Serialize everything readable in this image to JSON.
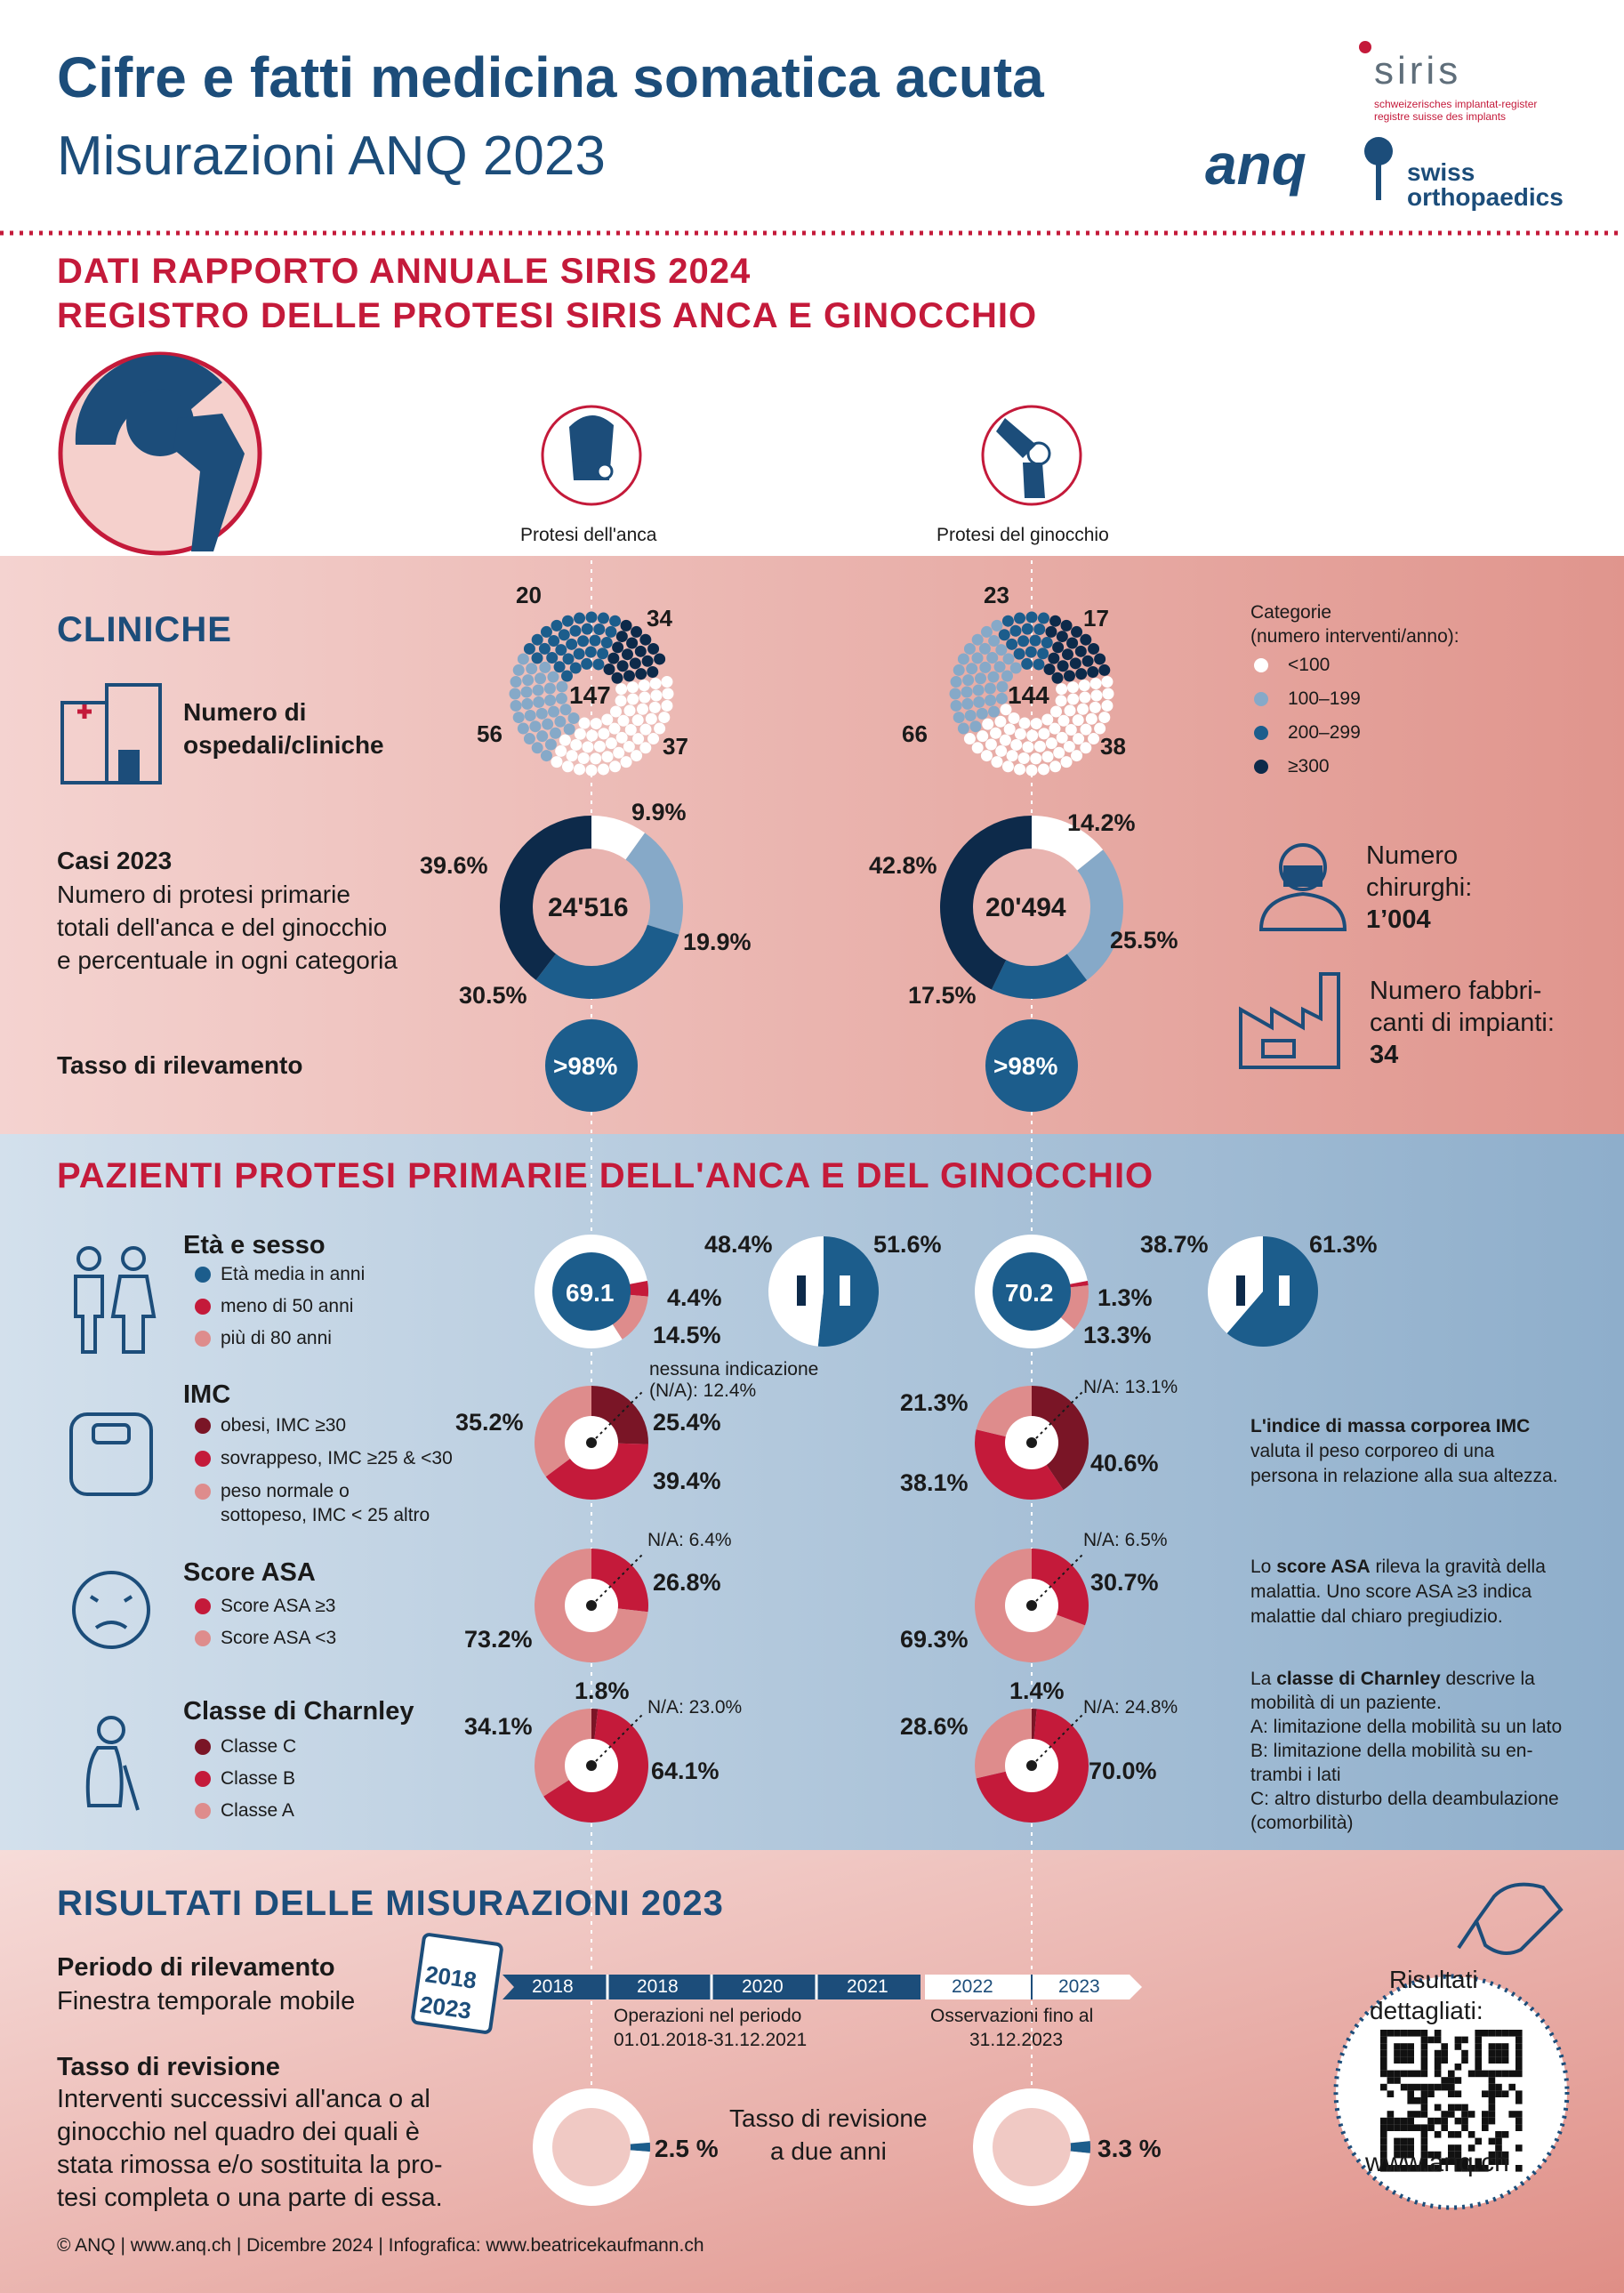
{
  "header": {
    "title": "Cifre e fatti medicina somatica acuta",
    "subtitle": "Misurazioni ANQ 2023",
    "siris_name": "siris",
    "siris_line1": "schweizerisches implantat-register",
    "siris_line2": "registre suisse des implants",
    "anq_logo": "anq",
    "so_line1": "swiss",
    "so_line2": "orthopaedics"
  },
  "section_title": {
    "line1": "DATI RAPPORTO ANNUALE SIRIS 2024",
    "line2": "REGISTRO DELLE PROTESI SIRIS ANCA E GINOCCHIO"
  },
  "columns": {
    "hip": "Protesi dell'anca",
    "knee": "Protesi del ginocchio"
  },
  "cliniche": {
    "title": "CLINICHE",
    "hospitals_label_1": "Numero di",
    "hospitals_label_2": "ospedali/cliniche",
    "hip": {
      "total": "147",
      "lt100": "56",
      "c100_199": "37",
      "c200_299": "34",
      "ge300": "20"
    },
    "knee": {
      "total": "144",
      "lt100": "66",
      "c100_199": "38",
      "c200_299": "17",
      "ge300": "23"
    },
    "legend": {
      "title1": "Categorie",
      "title2": "(numero interventi/anno):",
      "items": [
        "<100",
        "100–199",
        "200–299",
        "≥300"
      ]
    },
    "cases_title": "Casi 2023",
    "cases_desc": [
      "Numero di protesi primarie",
      "totali dell'anca e del ginocchio",
      "e percentuale in ogni categoria"
    ],
    "hip_cases": {
      "total": "24'516",
      "p_lt100": "9.9%",
      "p_100": "19.9%",
      "p_200": "30.5%",
      "p_300": "39.6%"
    },
    "knee_cases": {
      "total": "20'494",
      "p_lt100": "14.2%",
      "p_100": "25.5%",
      "p_200": "17.5%",
      "p_300": "42.8%"
    },
    "rate_label": "Tasso di rilevamento",
    "hip_rate": ">98%",
    "knee_rate": ">98%",
    "surgeons_1": "Numero",
    "surgeons_2": "chirurghi:",
    "surgeons_value": "1’004",
    "manufacturers_1": "Numero fabbri-",
    "manufacturers_2": "canti di impianti:",
    "manufacturers_value": "34"
  },
  "pazienti": {
    "title": "PAZIENTI PROTESI PRIMARIE DELL'ANCA E DEL GINOCCHIO",
    "age": {
      "title": "Età e sesso",
      "legend": [
        "Età media in anni",
        "meno di 50 anni",
        "più di 80 anni"
      ],
      "hip": {
        "mean": "69.1",
        "under50": "4.4%",
        "over80": "14.5%",
        "male": "48.4%",
        "female": "51.6%"
      },
      "knee": {
        "mean": "70.2",
        "under50": "1.3%",
        "over80": "13.3%",
        "male": "38.7%",
        "female": "61.3%"
      }
    },
    "imc": {
      "title": "IMC",
      "legend": [
        "obesi, IMC ≥30",
        "sovrappeso, IMC ≥25 & <30",
        "peso normale o",
        "sottopeso, IMC < 25 altro"
      ],
      "hip": {
        "na_1": "nessuna indicazione",
        "na_2": "(N/A): 12.4%",
        "obese": "25.4%",
        "over": "39.4%",
        "normal": "35.2%"
      },
      "knee": {
        "na": "N/A: 13.1%",
        "obese": "40.6%",
        "over": "38.1%",
        "normal": "21.3%"
      },
      "note_bold": "L'indice di massa corporea IMC",
      "note_lines": [
        "valuta il peso corporeo di una",
        "persona in relazione alla sua altezza."
      ]
    },
    "asa": {
      "title": "Score ASA",
      "legend": [
        "Score ASA ≥3",
        "Score ASA <3"
      ],
      "hip": {
        "na": "N/A: 6.4%",
        "ge3": "26.8%",
        "lt3": "73.2%"
      },
      "knee": {
        "na": "N/A: 6.5%",
        "ge3": "30.7%",
        "lt3": "69.3%"
      },
      "note_pre": "Lo ",
      "note_bold": "score ASA",
      "note_post": " rileva la gravità della",
      "note_lines": [
        "malattia. Uno score ASA ≥3 indica",
        "malattie dal chiaro pregiudizio."
      ]
    },
    "charnley": {
      "title": "Classe di Charnley",
      "legend": [
        "Classe C",
        "Classe B",
        "Classe A"
      ],
      "hip": {
        "na": "N/A: 23.0%",
        "c": "1.8%",
        "b": "64.1%",
        "a": "34.1%"
      },
      "knee": {
        "na": "N/A: 24.8%",
        "c": "1.4%",
        "b": "70.0%",
        "a": "28.6%"
      },
      "note_pre": "La ",
      "note_bold": "classe di Charnley",
      "note_post": " descrive la",
      "note_lines": [
        "mobilità di un paziente.",
        "A: limitazione della mobilità su un lato",
        "B: limitazione della mobilità su en-",
        "trambi i lati",
        "C: altro disturbo della deambulazione",
        "(comorbilità)"
      ]
    }
  },
  "risultati": {
    "title": "RISULTATI DELLE MISURAZIONI 2023",
    "period_title": "Periodo di rilevamento",
    "period_desc": "Finestra temporale mobile",
    "calendar_1": "2018",
    "calendar_2": "2023",
    "timeline": [
      "2018",
      "2018",
      "2020",
      "2021",
      "2022",
      "2023"
    ],
    "ops_1": "Operazioni nel periodo",
    "ops_2": "01.01.2018-31.12.2021",
    "obs_1": "Osservazioni fino al",
    "obs_2": "31.12.2023",
    "revision_title": "Tasso di revisione",
    "revision_desc": [
      "Interventi successivi all'anca o al",
      "ginocchio nel quadro dei quali è",
      "stata rimossa e/o sostituita la pro-",
      "tesi completa o una parte di essa."
    ],
    "revision_center_1": "Tasso di revisione",
    "revision_center_2": "a due anni",
    "hip_rev": "2.5 %",
    "knee_rev": "3.3 %",
    "detail_1": "Risultati",
    "detail_2": "dettagliati:",
    "url": "www.anq.ch"
  },
  "footer": "© ANQ | www.anq.ch | Dicembre 2024 | Infografica: www.beatricekaufmann.ch",
  "chart_data": [
    {
      "type": "pie",
      "title": "",
      "categories": [
        "<100",
        "100–199",
        "200–299",
        "≥300"
      ],
      "series": [
        {
          "name": "Protesi dell'anca",
          "values": [
            9.9,
            19.9,
            30.5,
            39.6
          ]
        },
        {
          "name": "Protesi del ginocchio",
          "values": [
            14.2,
            25.5,
            17.5,
            42.8
          ]
        }
      ]
    },
    {
      "type": "pie",
      "title": "",
      "categories": [
        "<100",
        "100–199",
        "200–299",
        "≥300"
      ],
      "series": [
        {
          "name": "Protesi dell'anca",
          "values": [
            56,
            37,
            34,
            20
          ]
        },
        {
          "name": "Protesi del ginocchio",
          "values": [
            66,
            38,
            17,
            23
          ]
        }
      ]
    }
  ],
  "colors": {
    "navy": "#0d2a4a",
    "blue": "#1c5d8c",
    "light_blue": "#86a9c8",
    "red": "#c41a3a",
    "dark_red": "#7a1526",
    "pink": "#de8c8c",
    "title_blue": "#1c4d7a",
    "title_red": "#c41a3a"
  }
}
